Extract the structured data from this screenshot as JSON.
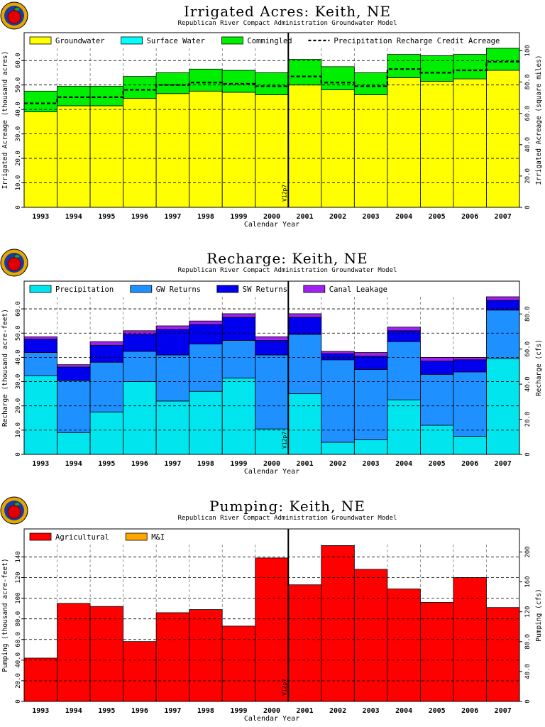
{
  "shared": {
    "years": [
      "1993",
      "1994",
      "1995",
      "1996",
      "1997",
      "1998",
      "1999",
      "2000",
      "2001",
      "2002",
      "2003",
      "2004",
      "2005",
      "2006",
      "2007"
    ],
    "subtitle": "Republican River Compact Administration Groundwater Model",
    "xlabel": "Calendar Year",
    "marker_label": "V12p7",
    "marker_after_year": "2000"
  },
  "colors": {
    "groundwater": "#ffff00",
    "surface_water": "#00ffff",
    "commingled": "#00ee00",
    "precip_credit_line": "#000000",
    "precipitation": "#00e5ee",
    "gw_returns": "#1e90ff",
    "sw_returns": "#0000ee",
    "canal_leakage": "#a020f0",
    "agricultural": "#ff0000",
    "mi": "#ffa500",
    "logo_ring": "#e6a800",
    "logo_apple": "#e00000"
  },
  "chart_data": [
    {
      "type": "area",
      "stacked": true,
      "title": "Irrigated Acres: Keith, NE",
      "subtitle": "Republican River Compact Administration Groundwater Model",
      "xlabel": "Calendar Year",
      "ylabel": "Irrigated Acreage (thousand acres)",
      "y2label": "Irrigated Acreage (square miles)",
      "ylim": [
        0,
        65
      ],
      "yticks": [
        "0",
        "10.0",
        "20.0",
        "30.0",
        "40.0",
        "50.0",
        "60.0"
      ],
      "y2ticks": [
        "0",
        "20.0",
        "40.0",
        "60.0",
        "80.0",
        "100"
      ],
      "y2_factor": 1.5625,
      "grid": true,
      "legend_position": "top",
      "categories": [
        "1993",
        "1994",
        "1995",
        "1996",
        "1997",
        "1998",
        "1999",
        "2000",
        "2001",
        "2002",
        "2003",
        "2004",
        "2005",
        "2006",
        "2007"
      ],
      "series": [
        {
          "name": "Groundwater",
          "values": [
            39.0,
            41.5,
            41.5,
            44.5,
            46.5,
            47.5,
            47.0,
            46.0,
            50.0,
            48.0,
            46.0,
            53.0,
            51.5,
            52.5,
            56.0
          ],
          "color_key": "groundwater"
        },
        {
          "name": "Surface Water",
          "values": [
            0,
            0,
            0,
            0,
            0,
            0,
            0,
            0,
            0,
            0,
            0,
            0,
            0,
            0,
            0
          ],
          "color_key": "surface_water"
        },
        {
          "name": "Commingled",
          "values": [
            8.5,
            8.0,
            8.0,
            9.0,
            8.5,
            9.0,
            9.0,
            9.0,
            10.5,
            9.5,
            9.0,
            9.5,
            10.5,
            10.0,
            9.0
          ],
          "color_key": "commingled"
        }
      ],
      "lines": [
        {
          "name": "Precipitation Recharge Credit Acreage",
          "values": [
            42.5,
            45.0,
            45.0,
            48.0,
            50.0,
            51.0,
            50.5,
            49.5,
            53.5,
            51.0,
            49.5,
            56.5,
            55.0,
            56.0,
            59.5
          ],
          "style": "dashed",
          "color_key": "precip_credit_line"
        }
      ]
    },
    {
      "type": "area",
      "stacked": true,
      "title": "Recharge: Keith, NE",
      "subtitle": "Republican River Compact Administration Groundwater Model",
      "xlabel": "Calendar Year",
      "ylabel": "Recharge (thousand acre-feet)",
      "y2label": "Recharge (cfs)",
      "ylim": [
        0,
        65
      ],
      "yticks": [
        "0",
        "10.0",
        "20.0",
        "30.0",
        "40.0",
        "50.0",
        "60.0"
      ],
      "y2ticks": [
        "0",
        "20.0",
        "40.0",
        "60.0",
        "80.0"
      ],
      "y2_factor": 1.3814,
      "grid": true,
      "legend_position": "top",
      "categories": [
        "1993",
        "1994",
        "1995",
        "1996",
        "1997",
        "1998",
        "1999",
        "2000",
        "2001",
        "2002",
        "2003",
        "2004",
        "2005",
        "2006",
        "2007"
      ],
      "series": [
        {
          "name": "Precipitation",
          "values": [
            32.5,
            9.0,
            17.5,
            30.0,
            22.0,
            26.0,
            31.5,
            10.5,
            25.0,
            5.0,
            6.0,
            22.5,
            12.0,
            7.5,
            39.5
          ],
          "color_key": "precipitation"
        },
        {
          "name": "GW Returns",
          "values": [
            9.5,
            21.5,
            20.5,
            12.5,
            19.0,
            19.5,
            15.5,
            30.5,
            24.5,
            34.0,
            29.0,
            24.0,
            21.0,
            26.5,
            20.0
          ],
          "color_key": "gw_returns"
        },
        {
          "name": "SW Returns",
          "values": [
            5.5,
            5.5,
            7.0,
            7.0,
            10.5,
            8.0,
            9.5,
            6.0,
            7.0,
            2.5,
            5.5,
            4.5,
            5.5,
            5.0,
            4.0
          ],
          "color_key": "sw_returns"
        },
        {
          "name": "Canal Leakage",
          "values": [
            1.0,
            1.0,
            1.5,
            1.5,
            1.5,
            1.5,
            1.5,
            1.5,
            1.5,
            1.0,
            1.5,
            1.5,
            1.5,
            1.0,
            1.5
          ],
          "color_key": "canal_leakage"
        }
      ]
    },
    {
      "type": "area",
      "stacked": true,
      "title": "Pumping: Keith, NE",
      "subtitle": "Republican River Compact Administration Groundwater Model",
      "xlabel": "Calendar Year",
      "ylabel": "Pumping (thousand acre-feet)",
      "y2label": "Pumping (cfs)",
      "ylim": [
        0,
        152
      ],
      "yticks": [
        "0",
        "20.0",
        "40.0",
        "60.0",
        "80.0",
        "100",
        "120",
        "140"
      ],
      "y2ticks": [
        "0",
        "40.0",
        "80.0",
        "120",
        "160",
        "200"
      ],
      "y2_factor": 1.3814,
      "grid": true,
      "legend_position": "top",
      "categories": [
        "1993",
        "1994",
        "1995",
        "1996",
        "1997",
        "1998",
        "1999",
        "2000",
        "2001",
        "2002",
        "2003",
        "2004",
        "2005",
        "2006",
        "2007"
      ],
      "series": [
        {
          "name": "Agricultural",
          "values": [
            42,
            95,
            92,
            58,
            86,
            89,
            73,
            139,
            113,
            151,
            128,
            109,
            96,
            120,
            91
          ],
          "color_key": "agricultural"
        },
        {
          "name": "M&I",
          "values": [
            0,
            0,
            0,
            0,
            0,
            0,
            0,
            0,
            0,
            0,
            0,
            0,
            0,
            0,
            0
          ],
          "color_key": "mi"
        }
      ]
    }
  ]
}
